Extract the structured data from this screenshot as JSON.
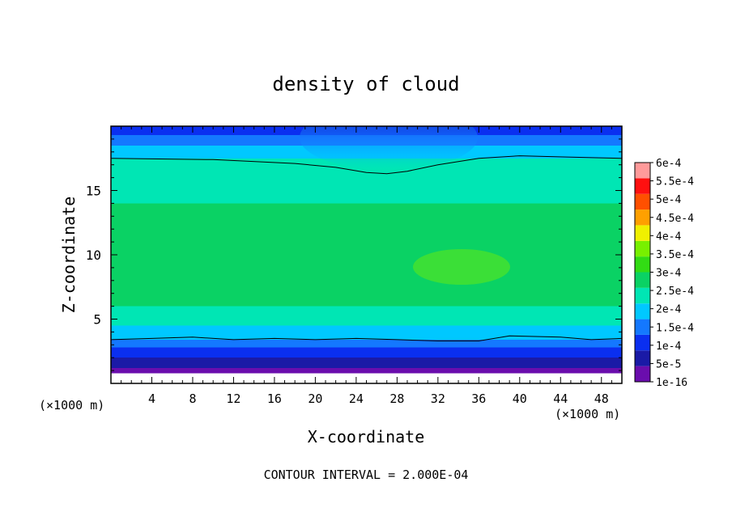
{
  "chart_data": {
    "type": "heatmap",
    "title": "density of cloud",
    "xlabel": "X-coordinate",
    "ylabel": "Z-coordinate",
    "x_unit_left": "(×1000 m)",
    "x_unit_right": "(×1000 m)",
    "xlim": [
      0,
      50
    ],
    "ylim": [
      0,
      20
    ],
    "x_ticks": [
      4,
      8,
      12,
      16,
      20,
      24,
      28,
      32,
      36,
      40,
      44,
      48
    ],
    "x_tick_labels": [
      "4",
      "8",
      "12",
      "16",
      "20",
      "24",
      "28",
      "32",
      "36",
      "40",
      "44",
      "48"
    ],
    "y_ticks": [
      5,
      10,
      15
    ],
    "y_tick_labels": [
      "5",
      "10",
      "15"
    ],
    "colorbar": {
      "levels": [
        1e-16,
        5e-05,
        0.0001,
        0.00015,
        0.0002,
        0.00025,
        0.0003,
        0.00035,
        0.0004,
        0.00045,
        0.0005,
        0.00055,
        0.0006
      ],
      "labels": [
        "1e-16",
        "5e-5",
        "1e-4",
        "1.5e-4",
        "2e-4",
        "2.5e-4",
        "3e-4",
        "3.5e-4",
        "4e-4",
        "4.5e-4",
        "5e-4",
        "5.5e-4",
        "6e-4"
      ],
      "colors": [
        "#6a0dad",
        "#1a1aa6",
        "#0a2ff0",
        "#1478ff",
        "#00c8ff",
        "#00e6b4",
        "#0ad264",
        "#32dc14",
        "#78f000",
        "#f0f000",
        "#ffa000",
        "#ff5000",
        "#ff1010",
        "#ff9a9a"
      ]
    },
    "contour_lines": [
      {
        "level": 0.0002,
        "points": [
          [
            0,
            17.5
          ],
          [
            10,
            17.4
          ],
          [
            18,
            17.1
          ],
          [
            22,
            16.8
          ],
          [
            25,
            16.4
          ],
          [
            27,
            16.3
          ],
          [
            29,
            16.5
          ],
          [
            32,
            17.0
          ],
          [
            36,
            17.5
          ],
          [
            40,
            17.7
          ],
          [
            45,
            17.6
          ],
          [
            50,
            17.5
          ]
        ]
      },
      {
        "level": 0.0002,
        "points": [
          [
            0,
            3.4
          ],
          [
            4,
            3.5
          ],
          [
            8,
            3.6
          ],
          [
            12,
            3.4
          ],
          [
            16,
            3.5
          ],
          [
            20,
            3.4
          ],
          [
            24,
            3.5
          ],
          [
            28,
            3.4
          ],
          [
            32,
            3.3
          ],
          [
            36,
            3.3
          ],
          [
            39,
            3.7
          ],
          [
            44,
            3.6
          ],
          [
            47,
            3.4
          ],
          [
            50,
            3.5
          ]
        ]
      }
    ],
    "vertical_profile": [
      {
        "z": 0.0,
        "value": 0
      },
      {
        "z": 0.8,
        "value": 1e-16
      },
      {
        "z": 1.2,
        "value": 5e-05
      },
      {
        "z": 2.0,
        "value": 0.0001
      },
      {
        "z": 2.8,
        "value": 0.00015
      },
      {
        "z": 3.4,
        "value": 0.0002
      },
      {
        "z": 4.5,
        "value": 0.00025
      },
      {
        "z": 6.0,
        "value": 0.0003
      },
      {
        "z": 8.0,
        "value": 0.00032
      },
      {
        "z": 10.0,
        "value": 0.00033
      },
      {
        "z": 12.0,
        "value": 0.00031
      },
      {
        "z": 14.0,
        "value": 0.00029
      },
      {
        "z": 16.0,
        "value": 0.00026
      },
      {
        "z": 17.5,
        "value": 0.0002
      },
      {
        "z": 18.5,
        "value": 0.00015
      },
      {
        "z": 19.3,
        "value": 0.0001
      },
      {
        "z": 20.0,
        "value": 5e-05
      }
    ],
    "annotation": "CONTOUR INTERVAL = 2.000E-04"
  }
}
